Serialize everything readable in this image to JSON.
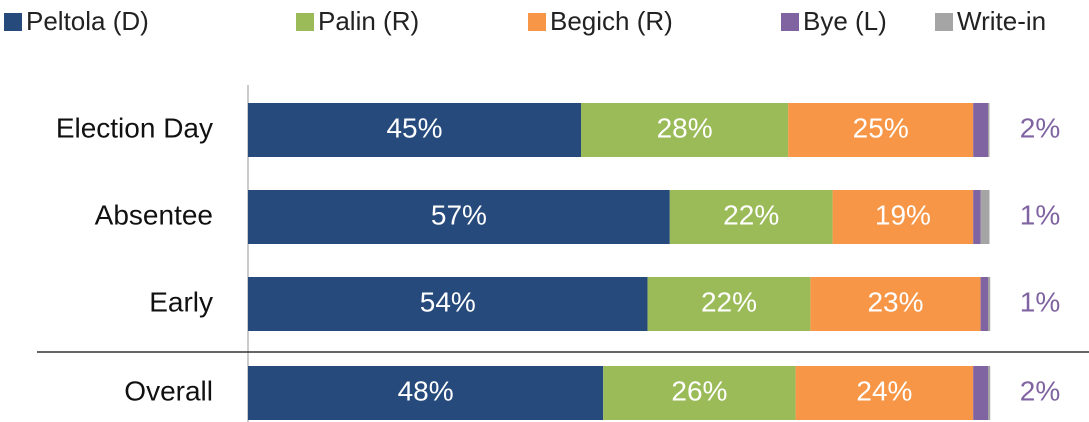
{
  "chart_data": {
    "type": "stacked_barh",
    "categories": [
      "Election Day",
      "Absentee",
      "Early",
      "Overall"
    ],
    "series": [
      {
        "name": "Peltola (D)",
        "color": "#264a7c",
        "values": [
          45,
          57,
          54,
          48
        ],
        "value_labels": [
          "45%",
          "57%",
          "54%",
          "48%"
        ]
      },
      {
        "name": "Palin (R)",
        "color": "#9bbb59",
        "values": [
          28,
          22,
          22,
          26
        ],
        "value_labels": [
          "28%",
          "22%",
          "22%",
          "26%"
        ]
      },
      {
        "name": "Begich (R)",
        "color": "#f79646",
        "values": [
          25,
          19,
          23,
          24
        ],
        "value_labels": [
          "25%",
          "19%",
          "23%",
          "24%"
        ]
      },
      {
        "name": "Bye (L)",
        "color": "#8064a2",
        "values": [
          2,
          1,
          1,
          2
        ],
        "value_labels": [
          "2%",
          "1%",
          "1%",
          "2%"
        ]
      },
      {
        "name": "Write-in",
        "color": "#a5a5a5",
        "values": [
          0.2,
          1.2,
          0.3,
          0.3
        ]
      }
    ],
    "xlim": [
      0,
      100
    ]
  }
}
